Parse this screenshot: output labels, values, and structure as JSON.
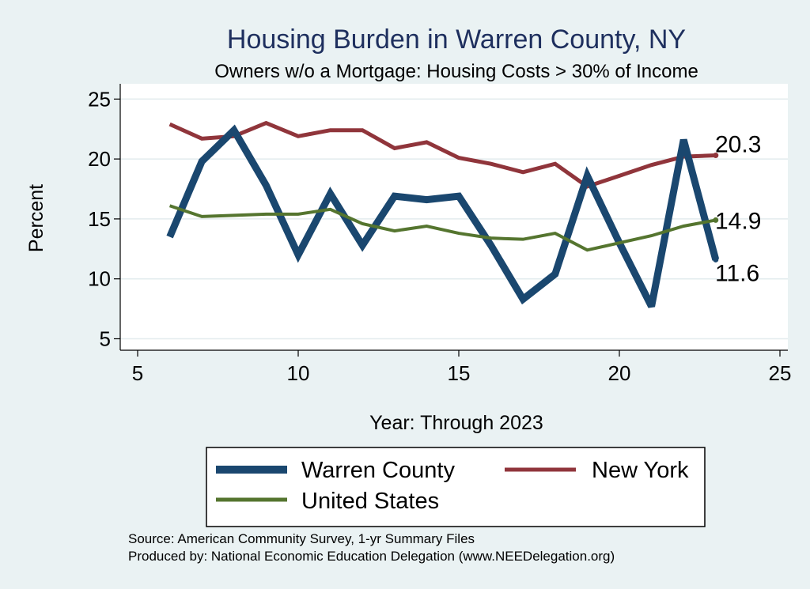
{
  "chart_data": {
    "type": "line",
    "title": "Housing Burden in Warren County, NY",
    "subtitle": "Owners w/o a Mortgage: Housing Costs > 30% of Income",
    "xlabel": "Year: Through 2023",
    "ylabel": "Percent",
    "xlim": [
      5,
      25
    ],
    "ylim": [
      4,
      26
    ],
    "xticks": [
      5,
      10,
      15,
      20,
      25
    ],
    "yticks": [
      5,
      10,
      15,
      20,
      25
    ],
    "grid": true,
    "x": [
      6,
      7,
      8,
      9,
      10,
      11,
      12,
      13,
      14,
      15,
      16,
      17,
      18,
      19,
      20,
      21,
      22,
      23
    ],
    "series": [
      {
        "name": "Warren County",
        "color": "#1a476f",
        "values": [
          13.5,
          19.8,
          22.4,
          17.8,
          12.0,
          17.1,
          12.8,
          16.9,
          16.6,
          16.9,
          12.8,
          8.3,
          10.4,
          18.6,
          13.0,
          7.7,
          21.6,
          11.6
        ],
        "end_label": "11.6"
      },
      {
        "name": "New York",
        "color": "#90353b",
        "values": [
          22.9,
          21.7,
          21.9,
          23.0,
          21.9,
          22.4,
          22.4,
          20.9,
          21.4,
          20.1,
          19.6,
          18.9,
          19.6,
          17.7,
          18.6,
          19.5,
          20.2,
          20.3
        ],
        "end_label": "20.3"
      },
      {
        "name": "United States",
        "color": "#55752f",
        "values": [
          16.1,
          15.2,
          15.3,
          15.4,
          15.4,
          15.8,
          14.6,
          14.0,
          14.4,
          13.8,
          13.4,
          13.3,
          13.8,
          12.4,
          13.0,
          13.6,
          14.4,
          14.9
        ],
        "end_label": "14.9"
      }
    ],
    "legend": {
      "position": "bottom",
      "entries": [
        "Warren County",
        "New York",
        "United States"
      ]
    },
    "notes": [
      "Source: American Community Survey, 1-yr Summary Files",
      "Produced by: National Economic Education Delegation (www.NEEDelegation.org)"
    ]
  }
}
